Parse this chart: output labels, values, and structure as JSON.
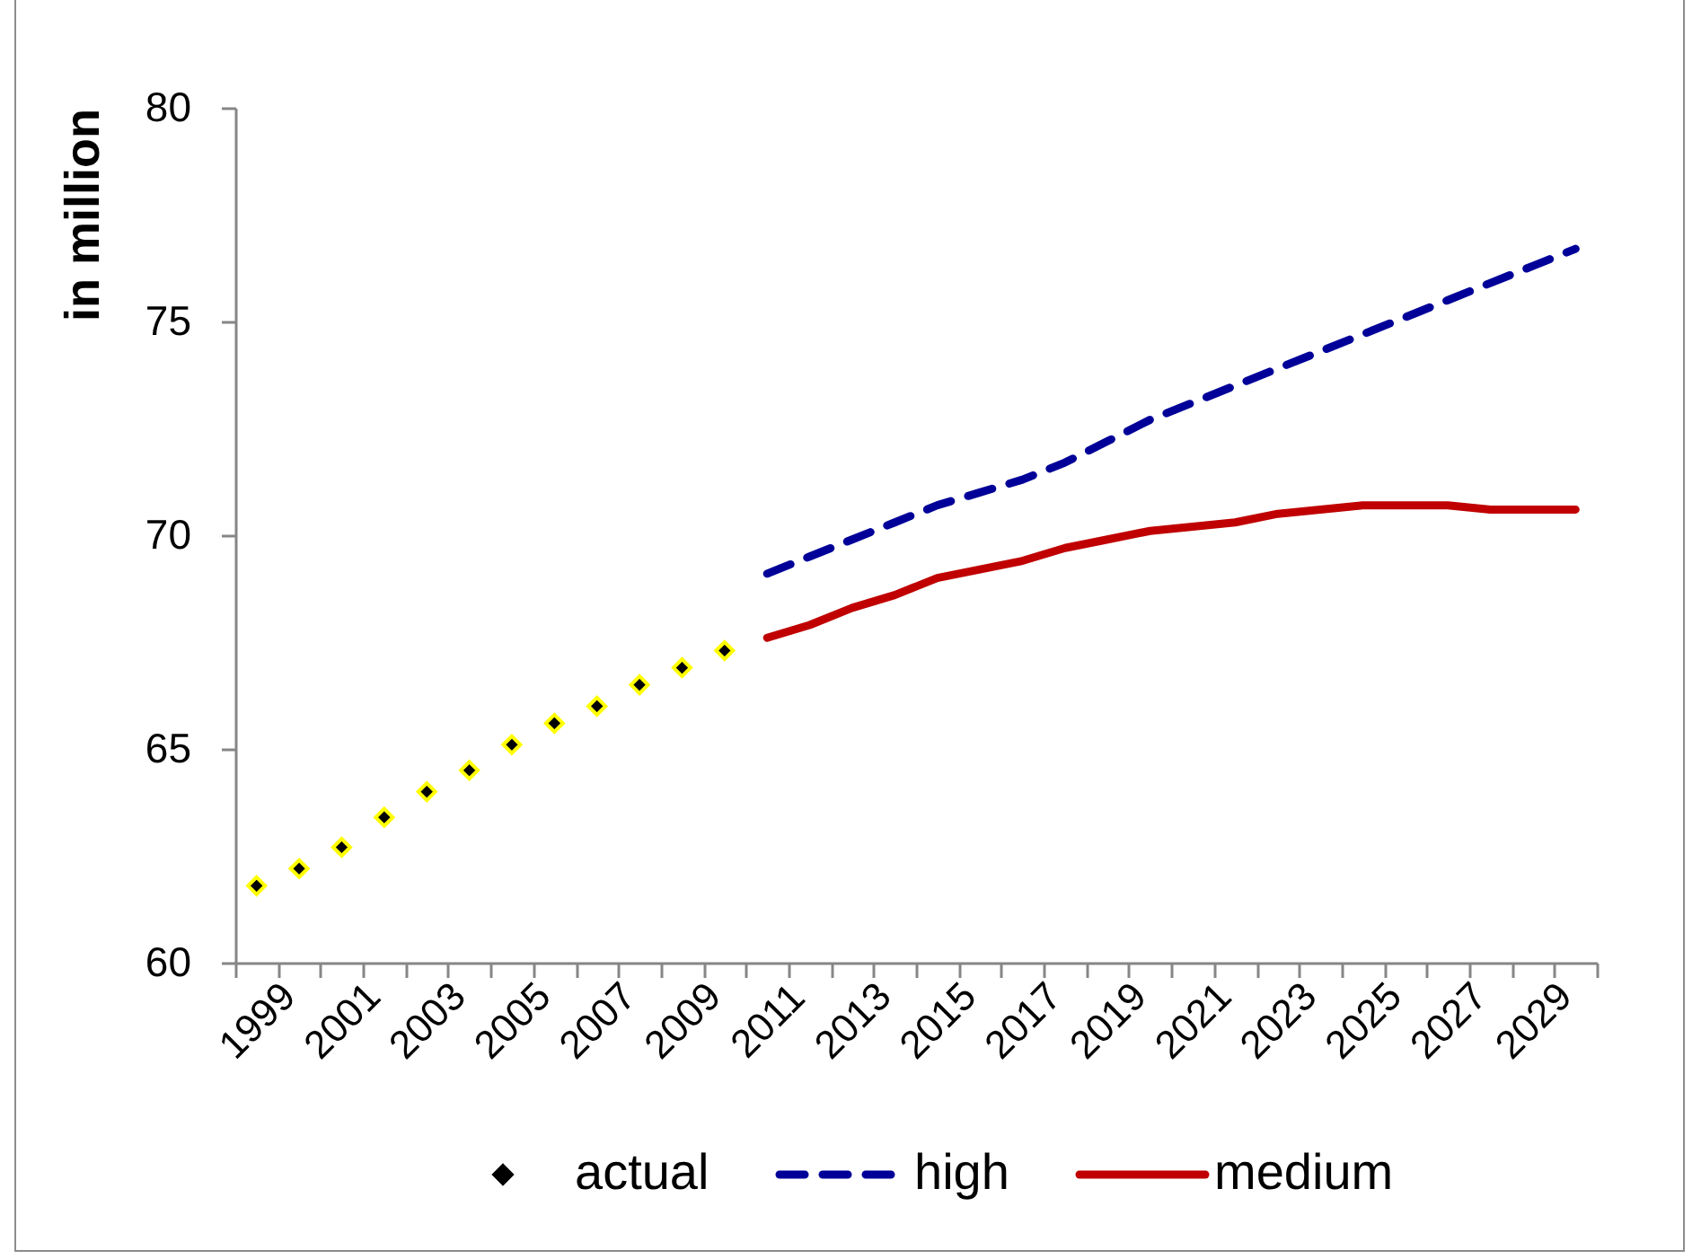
{
  "chart_data": {
    "type": "line",
    "ylabel": "in million",
    "categories": [
      "1999",
      null,
      "2001",
      null,
      "2003",
      null,
      "2005",
      null,
      "2007",
      null,
      "2009",
      null,
      "2011",
      null,
      "2013",
      null,
      "2015",
      null,
      "2017",
      null,
      "2019",
      null,
      "2021",
      null,
      "2023",
      null,
      "2025",
      null,
      "2027",
      null,
      "2029",
      null
    ],
    "ylim": [
      60,
      80
    ],
    "yticks": [
      60,
      65,
      70,
      75,
      80
    ],
    "legend": "bottom",
    "series": [
      {
        "name": "actual",
        "type": "scatter",
        "marker": "diamond",
        "color": "#000000",
        "values": [
          61.8,
          62.2,
          62.7,
          63.4,
          64.0,
          64.5,
          65.1,
          65.6,
          66.0,
          66.5,
          66.9,
          67.3,
          null,
          null,
          null,
          null,
          null,
          null,
          null,
          null,
          null,
          null,
          null,
          null,
          null,
          null,
          null,
          null,
          null,
          null,
          null,
          null
        ]
      },
      {
        "name": "high",
        "line_style": "dashed",
        "color": "#000099",
        "values": [
          null,
          null,
          null,
          null,
          null,
          null,
          null,
          null,
          null,
          null,
          null,
          null,
          69.1,
          69.5,
          69.9,
          70.3,
          70.7,
          71.0,
          71.3,
          71.7,
          72.2,
          72.7,
          73.1,
          73.5,
          73.9,
          74.3,
          74.7,
          75.1,
          75.5,
          75.9,
          76.3,
          76.7
        ]
      },
      {
        "name": "medium",
        "line_style": "solid",
        "color": "#c00000",
        "values": [
          null,
          null,
          null,
          null,
          null,
          null,
          null,
          null,
          null,
          null,
          null,
          null,
          67.6,
          67.9,
          68.3,
          68.6,
          69.0,
          69.2,
          69.4,
          69.7,
          69.9,
          70.1,
          70.2,
          70.3,
          70.5,
          70.6,
          70.7,
          70.7,
          70.7,
          70.6,
          70.6,
          70.6
        ]
      }
    ]
  }
}
